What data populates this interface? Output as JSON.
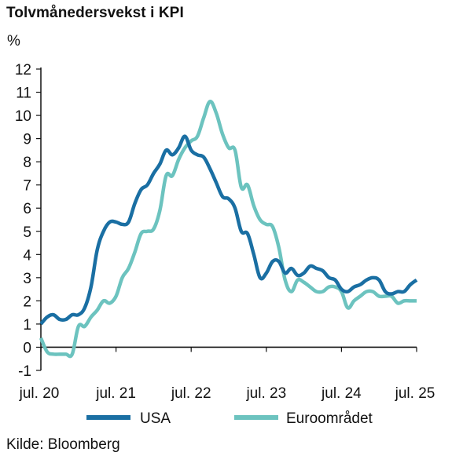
{
  "title": "Tolvmånedersvekst i KPI",
  "unit": "%",
  "source": "Kilde: Bloomberg",
  "chart_data": {
    "type": "line",
    "ylim": [
      -1,
      12
    ],
    "yticks": [
      -1,
      0,
      1,
      2,
      3,
      4,
      5,
      6,
      7,
      8,
      9,
      10,
      11,
      12
    ],
    "xlim": [
      0,
      60
    ],
    "xticks": [
      {
        "pos": 0,
        "label": "jul. 20"
      },
      {
        "pos": 12,
        "label": "jul. 21"
      },
      {
        "pos": 24,
        "label": "jul. 22"
      },
      {
        "pos": 36,
        "label": "jul. 23"
      },
      {
        "pos": 48,
        "label": "jul. 24"
      },
      {
        "pos": 60,
        "label": "jul. 25"
      }
    ],
    "zero_line": true,
    "legend_position": "bottom",
    "series": [
      {
        "name": "USA",
        "color": "#1a6fa3",
        "x": [
          0,
          1,
          2,
          3,
          4,
          5,
          6,
          7,
          8,
          9,
          10,
          11,
          12,
          13,
          14,
          15,
          16,
          17,
          18,
          19,
          20,
          21,
          22,
          23,
          24,
          25,
          26,
          27,
          28,
          29,
          30,
          31,
          32,
          33,
          34,
          35,
          36,
          37,
          38,
          39,
          40,
          41,
          42,
          43,
          44,
          45,
          46,
          47,
          48,
          49,
          50,
          51,
          52,
          53,
          54,
          55,
          56,
          57,
          58,
          59,
          60
        ],
        "values": [
          1.0,
          1.3,
          1.4,
          1.2,
          1.2,
          1.4,
          1.4,
          1.7,
          2.6,
          4.2,
          5.0,
          5.4,
          5.4,
          5.3,
          5.4,
          6.2,
          6.8,
          7.0,
          7.5,
          7.9,
          8.5,
          8.3,
          8.6,
          9.1,
          8.5,
          8.3,
          8.2,
          7.7,
          7.1,
          6.5,
          6.4,
          6.0,
          5.0,
          4.9,
          4.0,
          3.0,
          3.2,
          3.7,
          3.7,
          3.2,
          3.4,
          3.1,
          3.2,
          3.5,
          3.4,
          3.3,
          3.0,
          2.9,
          2.5,
          2.4,
          2.6,
          2.7,
          2.9,
          3.0,
          2.9,
          2.4,
          2.3,
          2.4,
          2.4,
          2.7,
          2.9
        ]
      },
      {
        "name": "Euroområdet",
        "color": "#6cc3bf",
        "x": [
          0,
          1,
          2,
          3,
          4,
          5,
          6,
          7,
          8,
          9,
          10,
          11,
          12,
          13,
          14,
          15,
          16,
          17,
          18,
          19,
          20,
          21,
          22,
          23,
          24,
          25,
          26,
          27,
          28,
          29,
          30,
          31,
          32,
          33,
          34,
          35,
          36,
          37,
          38,
          39,
          40,
          41,
          42,
          43,
          44,
          45,
          46,
          47,
          48,
          49,
          50,
          51,
          52,
          53,
          54,
          55,
          56,
          57,
          58,
          59,
          60
        ],
        "values": [
          0.4,
          -0.2,
          -0.3,
          -0.3,
          -0.3,
          -0.3,
          0.9,
          0.9,
          1.3,
          1.6,
          2.0,
          1.9,
          2.2,
          3.0,
          3.4,
          4.1,
          4.9,
          5.0,
          5.1,
          5.9,
          7.4,
          7.4,
          8.1,
          8.6,
          8.9,
          9.1,
          9.9,
          10.6,
          10.1,
          9.2,
          8.6,
          8.5,
          6.9,
          7.0,
          6.1,
          5.5,
          5.3,
          5.2,
          4.3,
          2.9,
          2.4,
          2.9,
          2.8,
          2.6,
          2.4,
          2.4,
          2.6,
          2.6,
          2.4,
          1.7,
          2.0,
          2.2,
          2.4,
          2.4,
          2.2,
          2.2,
          2.2,
          1.9,
          2.0,
          2.0,
          2.0
        ]
      }
    ]
  }
}
